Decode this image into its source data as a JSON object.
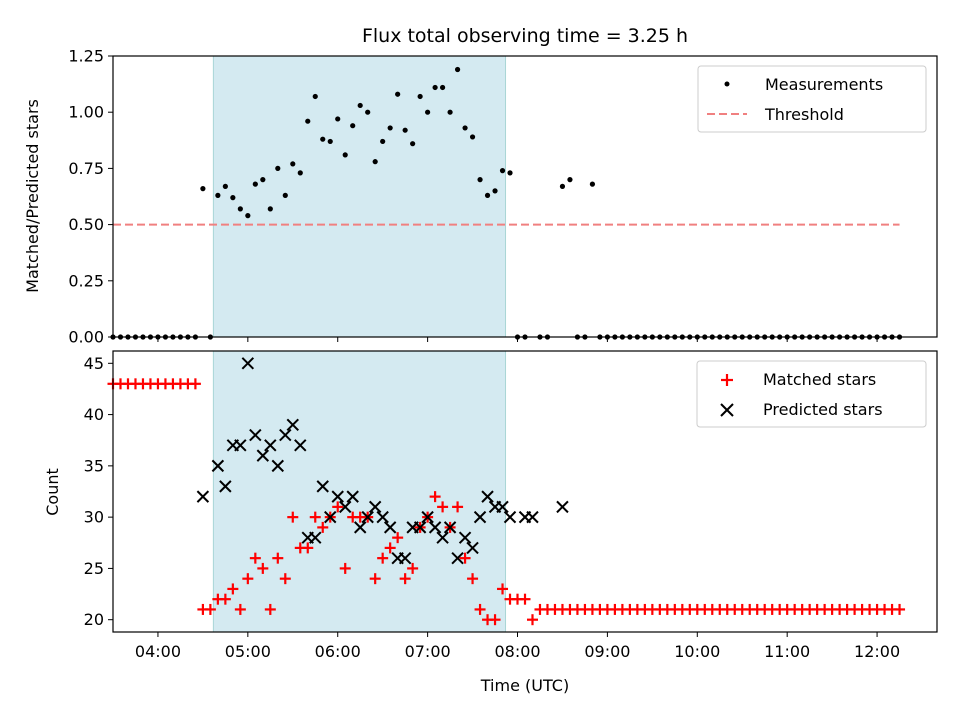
{
  "chart_data": [
    {
      "type": "scatter",
      "title": "Flux total observing time = 3.25 h",
      "xlabel": "",
      "ylabel": "Matched/Predicted stars",
      "xlim": [
        "03:30",
        "12:40"
      ],
      "ylim": [
        0,
        1.25
      ],
      "yticks": [
        "0.00",
        "0.25",
        "0.50",
        "0.75",
        "1.00",
        "1.25"
      ],
      "highlight_span": {
        "start": "04:37",
        "end": "07:52",
        "color": "#d4eaf1"
      },
      "legend": {
        "position": "top-right"
      },
      "series": [
        {
          "name": "Measurements",
          "marker": "dot",
          "color": "#000000",
          "x": [
            "03:30",
            "03:35",
            "03:40",
            "03:45",
            "03:50",
            "03:55",
            "04:00",
            "04:05",
            "04:10",
            "04:15",
            "04:20",
            "04:25",
            "04:30",
            "04:35",
            "04:40",
            "04:45",
            "04:50",
            "04:55",
            "05:00",
            "05:05",
            "05:10",
            "05:15",
            "05:20",
            "05:25",
            "05:30",
            "05:35",
            "05:40",
            "05:45",
            "05:50",
            "05:55",
            "06:00",
            "06:05",
            "06:10",
            "06:15",
            "06:20",
            "06:25",
            "06:30",
            "06:35",
            "06:40",
            "06:45",
            "06:50",
            "06:55",
            "07:00",
            "07:05",
            "07:10",
            "07:15",
            "07:20",
            "07:25",
            "07:30",
            "07:35",
            "07:40",
            "07:45",
            "07:50",
            "07:55",
            "08:00",
            "08:05",
            "08:10",
            "08:15",
            "08:20",
            "08:25",
            "08:30",
            "08:35",
            "08:40",
            "08:45",
            "08:50",
            "08:55",
            "09:00",
            "09:05",
            "09:10",
            "09:15",
            "09:20",
            "09:25",
            "09:30",
            "09:35",
            "09:40",
            "09:45",
            "09:50",
            "09:55",
            "10:00",
            "10:05",
            "10:10",
            "10:15",
            "10:20",
            "10:25",
            "10:30",
            "10:35",
            "10:40",
            "10:45",
            "10:50",
            "10:55",
            "11:00",
            "11:05",
            "11:10",
            "11:15",
            "11:20",
            "11:25",
            "11:30",
            "11:35",
            "11:40",
            "11:45",
            "11:50",
            "11:55",
            "12:00",
            "12:05",
            "12:10",
            "12:15"
          ],
          "y": [
            0,
            0,
            0,
            0,
            0,
            0,
            0,
            0,
            0,
            0,
            0,
            0,
            0.66,
            0,
            0.63,
            0.67,
            0.62,
            0.57,
            0.54,
            0.68,
            0.7,
            0.57,
            0.75,
            0.63,
            0.77,
            0.73,
            0.96,
            1.07,
            0.88,
            0.87,
            0.97,
            0.81,
            0.94,
            1.03,
            1.0,
            0.78,
            0.87,
            0.93,
            1.08,
            0.92,
            0.86,
            1.07,
            1.0,
            1.11,
            1.11,
            1.0,
            1.19,
            0.93,
            0.89,
            0.7,
            0.63,
            0.65,
            0.74,
            0.73,
            0,
            0,
            null,
            0,
            0,
            null,
            0.67,
            0.7,
            0,
            0,
            0.68,
            0,
            0,
            0,
            0,
            0,
            0,
            0,
            0,
            0,
            0,
            0,
            0,
            0,
            0,
            0,
            0,
            0,
            0,
            0,
            0,
            0,
            0,
            0,
            0,
            0,
            0,
            0,
            0,
            0,
            0,
            0,
            0,
            0,
            0,
            0,
            0,
            0,
            0,
            0,
            0,
            0
          ]
        },
        {
          "name": "Threshold",
          "style": "dashed",
          "color": "#f08080",
          "x": [
            "03:30",
            "12:15"
          ],
          "y": [
            0.5,
            0.5
          ]
        }
      ]
    },
    {
      "type": "scatter",
      "title": "",
      "xlabel": "Time (UTC)",
      "ylabel": "Count",
      "xlim": [
        "03:30",
        "12:40"
      ],
      "ylim": [
        18.8,
        46.2
      ],
      "yticks": [
        "20",
        "25",
        "30",
        "35",
        "40",
        "45"
      ],
      "xticks": [
        "04:00",
        "05:00",
        "06:00",
        "07:00",
        "08:00",
        "09:00",
        "10:00",
        "11:00",
        "12:00"
      ],
      "highlight_span": {
        "start": "04:37",
        "end": "07:52",
        "color": "#d4eaf1"
      },
      "legend": {
        "position": "top-right"
      },
      "series": [
        {
          "name": "Matched stars",
          "marker": "plus",
          "color": "#ff0000",
          "x": [
            "03:30",
            "03:35",
            "03:40",
            "03:45",
            "03:50",
            "03:55",
            "04:00",
            "04:05",
            "04:10",
            "04:15",
            "04:20",
            "04:25",
            "04:30",
            "04:35",
            "04:40",
            "04:45",
            "04:50",
            "04:55",
            "05:00",
            "05:05",
            "05:10",
            "05:15",
            "05:20",
            "05:25",
            "05:30",
            "05:35",
            "05:40",
            "05:45",
            "05:50",
            "05:55",
            "06:00",
            "06:05",
            "06:10",
            "06:15",
            "06:20",
            "06:25",
            "06:30",
            "06:35",
            "06:40",
            "06:45",
            "06:50",
            "06:55",
            "07:00",
            "07:05",
            "07:10",
            "07:15",
            "07:20",
            "07:25",
            "07:30",
            "07:35",
            "07:40",
            "07:45",
            "07:50",
            "07:55",
            "08:00",
            "08:05",
            "08:10",
            "08:15",
            "08:20",
            "08:25",
            "08:30",
            "08:35",
            "08:40",
            "08:45",
            "08:50",
            "08:55",
            "09:00",
            "09:05",
            "09:10",
            "09:15",
            "09:20",
            "09:25",
            "09:30",
            "09:35",
            "09:40",
            "09:45",
            "09:50",
            "09:55",
            "10:00",
            "10:05",
            "10:10",
            "10:15",
            "10:20",
            "10:25",
            "10:30",
            "10:35",
            "10:40",
            "10:45",
            "10:50",
            "10:55",
            "11:00",
            "11:05",
            "11:10",
            "11:15",
            "11:20",
            "11:25",
            "11:30",
            "11:35",
            "11:40",
            "11:45",
            "11:50",
            "11:55",
            "12:00",
            "12:05",
            "12:10",
            "12:15"
          ],
          "y": [
            43,
            43,
            43,
            43,
            43,
            43,
            43,
            43,
            43,
            43,
            43,
            43,
            21,
            21,
            22,
            22,
            23,
            21,
            24,
            26,
            25,
            21,
            26,
            24,
            30,
            27,
            27,
            30,
            29,
            30,
            31,
            25,
            30,
            30,
            30,
            24,
            26,
            27,
            28,
            24,
            25,
            29,
            30,
            32,
            31,
            29,
            31,
            26,
            24,
            21,
            20,
            20,
            23,
            22,
            22,
            22,
            20,
            21,
            21,
            21,
            21,
            21,
            21,
            21,
            21,
            21,
            21,
            21,
            21,
            21,
            21,
            21,
            21,
            21,
            21,
            21,
            21,
            21,
            21,
            21,
            21,
            21,
            21,
            21,
            21,
            21,
            21,
            21,
            21,
            21,
            21,
            21,
            21,
            21,
            21,
            21,
            21,
            21,
            21,
            21,
            21,
            21,
            21,
            21,
            21,
            21
          ]
        },
        {
          "name": "Predicted stars",
          "marker": "x",
          "color": "#000000",
          "x": [
            "04:30",
            "04:40",
            "04:45",
            "04:50",
            "04:55",
            "05:00",
            "05:05",
            "05:10",
            "05:15",
            "05:20",
            "05:25",
            "05:30",
            "05:35",
            "05:40",
            "05:45",
            "05:50",
            "05:55",
            "06:00",
            "06:05",
            "06:10",
            "06:15",
            "06:20",
            "06:25",
            "06:30",
            "06:35",
            "06:40",
            "06:45",
            "06:50",
            "06:55",
            "07:00",
            "07:05",
            "07:10",
            "07:15",
            "07:20",
            "07:25",
            "07:30",
            "07:35",
            "07:40",
            "07:45",
            "07:50",
            "07:55",
            "08:05",
            "08:10",
            "08:30"
          ],
          "y": [
            32,
            35,
            33,
            37,
            37,
            45,
            38,
            36,
            37,
            35,
            38,
            39,
            37,
            28,
            28,
            33,
            30,
            32,
            31,
            32,
            29,
            30,
            31,
            30,
            29,
            26,
            26,
            29,
            29,
            30,
            29,
            28,
            29,
            26,
            28,
            27,
            30,
            32,
            31,
            31,
            30,
            30,
            30,
            31
          ]
        }
      ]
    }
  ]
}
